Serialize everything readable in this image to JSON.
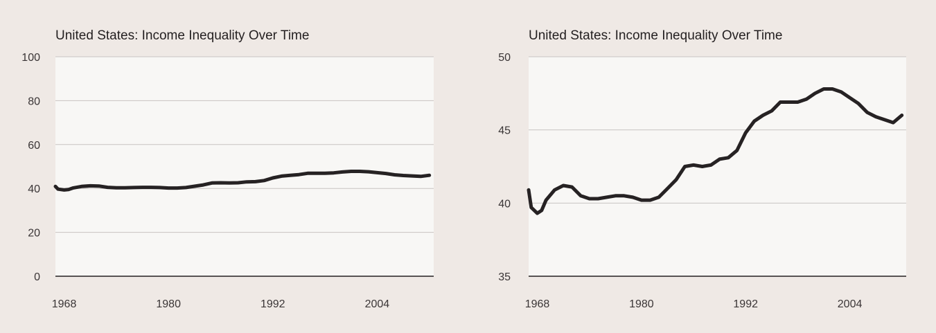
{
  "chart_data": [
    {
      "type": "line",
      "title": "United States: Income Inequality Over Time",
      "xlabel": "",
      "ylabel": "",
      "ylim": [
        0,
        100
      ],
      "yticks": [
        0,
        20,
        40,
        60,
        80,
        100
      ],
      "xlim": [
        1967,
        2010.5
      ],
      "xticks": [
        1968,
        1980,
        1992,
        2004
      ],
      "grid": true,
      "series": [
        {
          "color": "#262223",
          "points": [
            [
              1967,
              40.9
            ],
            [
              1967.3,
              39.7
            ],
            [
              1968,
              39.3
            ],
            [
              1968.5,
              39.5
            ],
            [
              1969,
              40.2
            ],
            [
              1970,
              40.9
            ],
            [
              1971,
              41.2
            ],
            [
              1972,
              41.1
            ],
            [
              1973,
              40.5
            ],
            [
              1974,
              40.3
            ],
            [
              1975,
              40.3
            ],
            [
              1976,
              40.4
            ],
            [
              1977,
              40.5
            ],
            [
              1978,
              40.5
            ],
            [
              1979,
              40.4
            ],
            [
              1980,
              40.2
            ],
            [
              1981,
              40.2
            ],
            [
              1982,
              40.4
            ],
            [
              1983,
              41.0
            ],
            [
              1984,
              41.6
            ],
            [
              1985,
              42.5
            ],
            [
              1986,
              42.6
            ],
            [
              1987,
              42.5
            ],
            [
              1988,
              42.6
            ],
            [
              1989,
              43.0
            ],
            [
              1990,
              43.1
            ],
            [
              1991,
              43.6
            ],
            [
              1992,
              44.8
            ],
            [
              1993,
              45.6
            ],
            [
              1994,
              46.0
            ],
            [
              1995,
              46.3
            ],
            [
              1996,
              46.9
            ],
            [
              1997,
              46.9
            ],
            [
              1998,
              46.9
            ],
            [
              1999,
              47.1
            ],
            [
              2000,
              47.5
            ],
            [
              2001,
              47.8
            ],
            [
              2002,
              47.8
            ],
            [
              2003,
              47.6
            ],
            [
              2004,
              47.2
            ],
            [
              2005,
              46.8
            ],
            [
              2006,
              46.2
            ],
            [
              2007,
              45.9
            ],
            [
              2008,
              45.7
            ],
            [
              2009,
              45.5
            ],
            [
              2010,
              46.0
            ]
          ]
        }
      ]
    },
    {
      "type": "line",
      "title": "United States: Income Inequality Over Time",
      "xlabel": "",
      "ylabel": "",
      "ylim": [
        35,
        50
      ],
      "yticks": [
        35,
        40,
        45,
        50
      ],
      "xlim": [
        1967,
        2010.5
      ],
      "xticks": [
        1968,
        1980,
        1992,
        2004
      ],
      "grid": true,
      "series": [
        {
          "color": "#262223",
          "points": [
            [
              1967,
              40.9
            ],
            [
              1967.3,
              39.7
            ],
            [
              1968,
              39.3
            ],
            [
              1968.5,
              39.5
            ],
            [
              1969,
              40.2
            ],
            [
              1970,
              40.9
            ],
            [
              1971,
              41.2
            ],
            [
              1972,
              41.1
            ],
            [
              1973,
              40.5
            ],
            [
              1974,
              40.3
            ],
            [
              1975,
              40.3
            ],
            [
              1976,
              40.4
            ],
            [
              1977,
              40.5
            ],
            [
              1978,
              40.5
            ],
            [
              1979,
              40.4
            ],
            [
              1980,
              40.2
            ],
            [
              1981,
              40.2
            ],
            [
              1982,
              40.4
            ],
            [
              1983,
              41.0
            ],
            [
              1984,
              41.6
            ],
            [
              1985,
              42.5
            ],
            [
              1986,
              42.6
            ],
            [
              1987,
              42.5
            ],
            [
              1988,
              42.6
            ],
            [
              1989,
              43.0
            ],
            [
              1990,
              43.1
            ],
            [
              1991,
              43.6
            ],
            [
              1992,
              44.8
            ],
            [
              1993,
              45.6
            ],
            [
              1994,
              46.0
            ],
            [
              1995,
              46.3
            ],
            [
              1996,
              46.9
            ],
            [
              1997,
              46.9
            ],
            [
              1998,
              46.9
            ],
            [
              1999,
              47.1
            ],
            [
              2000,
              47.5
            ],
            [
              2001,
              47.8
            ],
            [
              2002,
              47.8
            ],
            [
              2003,
              47.6
            ],
            [
              2004,
              47.2
            ],
            [
              2005,
              46.8
            ],
            [
              2006,
              46.2
            ],
            [
              2007,
              45.9
            ],
            [
              2008,
              45.7
            ],
            [
              2009,
              45.5
            ],
            [
              2010,
              46.0
            ]
          ]
        }
      ]
    }
  ]
}
